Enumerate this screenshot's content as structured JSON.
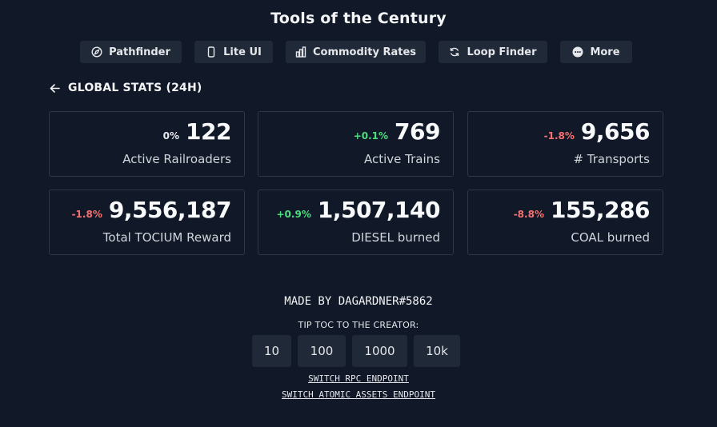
{
  "page": {
    "title": "Tools of the Century"
  },
  "nav": [
    {
      "label": "Pathfinder",
      "icon": "compass-icon"
    },
    {
      "label": "Lite UI",
      "icon": "mobile-icon"
    },
    {
      "label": "Commodity Rates",
      "icon": "bar-chart-icon"
    },
    {
      "label": "Loop Finder",
      "icon": "refresh-icon"
    },
    {
      "label": "More",
      "icon": "more-icon"
    }
  ],
  "section": {
    "title": "GLOBAL STATS (24H)",
    "back_icon": "arrow-left-icon"
  },
  "stats": [
    {
      "delta": "0%",
      "trend": "neutral",
      "value": "122",
      "label": "Active Railroaders"
    },
    {
      "delta": "+0.1%",
      "trend": "up",
      "value": "769",
      "label": "Active Trains"
    },
    {
      "delta": "-1.8%",
      "trend": "down",
      "value": "9,656",
      "label": "# Transports"
    },
    {
      "delta": "-1.8%",
      "trend": "down",
      "value": "9,556,187",
      "label": "Total TOCIUM Reward"
    },
    {
      "delta": "+0.9%",
      "trend": "up",
      "value": "1,507,140",
      "label": "DIESEL burned"
    },
    {
      "delta": "-8.8%",
      "trend": "down",
      "value": "155,286",
      "label": "COAL burned"
    }
  ],
  "footer": {
    "made_by": "MADE BY DAGARDNER#5862",
    "tip_label": "TIP TOC TO THE CREATOR:",
    "tips": [
      "10",
      "100",
      "1000",
      "10k"
    ],
    "switch_rpc": "SWITCH RPC ENDPOINT",
    "switch_atomic": "SWITCH ATOMIC ASSETS ENDPOINT"
  },
  "colors": {
    "background": "#111827",
    "surface": "#1f2937",
    "positive": "#4ade80",
    "negative": "#f87171"
  }
}
